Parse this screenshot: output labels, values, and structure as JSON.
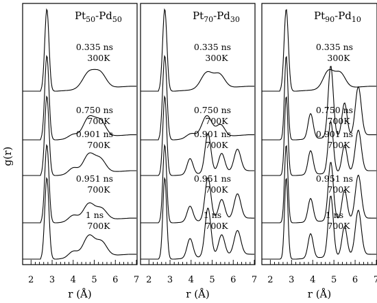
{
  "chart_data": {
    "type": "line",
    "ylabel": "g(r)",
    "xlabel": "r (Å)",
    "xlim": [
      1.6,
      7.0
    ],
    "x_ticks": [
      "2",
      "3",
      "4",
      "5",
      "6",
      "7"
    ],
    "y_ticks_labeled": false,
    "grid": false,
    "legend": "none",
    "panels": [
      {
        "title_main": "Pt",
        "title_sub1": "50",
        "title_mid": "-Pd",
        "title_sub2": "50",
        "curves": [
          {
            "time": "0.335 ns",
            "temp": "300K",
            "peaks": [
              [
                2.75,
                1.0,
                0.1
              ],
              [
                4.75,
                0.2,
                0.3
              ],
              [
                5.3,
                0.17,
                0.27
              ]
            ]
          },
          {
            "time": "0.750 ns",
            "temp": "700K",
            "peaks": [
              [
                2.75,
                1.0,
                0.1
              ],
              [
                4.0,
                0.05,
                0.22
              ],
              [
                4.75,
                0.24,
                0.27
              ],
              [
                5.3,
                0.18,
                0.25
              ]
            ]
          },
          {
            "time": "0.901 ns",
            "temp": "700K",
            "peaks": [
              [
                2.75,
                1.0,
                0.1
              ],
              [
                4.0,
                0.08,
                0.22
              ],
              [
                4.75,
                0.24,
                0.27
              ],
              [
                5.3,
                0.16,
                0.25
              ]
            ]
          },
          {
            "time": "0.951 ns",
            "temp": "700K",
            "peaks": [
              [
                2.75,
                1.0,
                0.1
              ],
              [
                4.0,
                0.08,
                0.22
              ],
              [
                4.75,
                0.22,
                0.27
              ],
              [
                5.35,
                0.14,
                0.25
              ]
            ]
          },
          {
            "time": "1 ns",
            "temp": "700K",
            "peaks": [
              [
                2.75,
                1.0,
                0.1
              ],
              [
                4.0,
                0.08,
                0.22
              ],
              [
                4.75,
                0.26,
                0.27
              ],
              [
                5.35,
                0.17,
                0.25
              ]
            ]
          }
        ]
      },
      {
        "title_main": "Pt",
        "title_sub1": "70",
        "title_mid": "-Pd",
        "title_sub2": "30",
        "curves": [
          {
            "time": "0.335 ns",
            "temp": "300K",
            "peaks": [
              [
                2.75,
                1.0,
                0.1
              ],
              [
                4.75,
                0.2,
                0.28
              ],
              [
                5.35,
                0.16,
                0.25
              ]
            ]
          },
          {
            "time": "0.750 ns",
            "temp": "700K",
            "peaks": [
              [
                2.75,
                1.0,
                0.1
              ],
              [
                4.0,
                0.06,
                0.22
              ],
              [
                4.75,
                0.26,
                0.24
              ],
              [
                5.4,
                0.14,
                0.2
              ]
            ]
          },
          {
            "time": "0.901 ns",
            "temp": "700K",
            "peaks": [
              [
                2.75,
                1.0,
                0.09
              ],
              [
                3.95,
                0.2,
                0.14
              ],
              [
                4.8,
                0.5,
                0.14
              ],
              [
                5.45,
                0.24,
                0.15
              ],
              [
                6.2,
                0.28,
                0.16
              ]
            ]
          },
          {
            "time": "0.951 ns",
            "temp": "700K",
            "peaks": [
              [
                2.75,
                1.0,
                0.09
              ],
              [
                3.95,
                0.2,
                0.14
              ],
              [
                4.8,
                0.55,
                0.14
              ],
              [
                5.45,
                0.26,
                0.15
              ],
              [
                6.2,
                0.32,
                0.16
              ]
            ]
          },
          {
            "time": "1 ns",
            "temp": "700K",
            "peaks": [
              [
                2.75,
                1.0,
                0.09
              ],
              [
                3.95,
                0.24,
                0.14
              ],
              [
                4.8,
                0.6,
                0.14
              ],
              [
                5.45,
                0.26,
                0.15
              ],
              [
                6.2,
                0.3,
                0.16
              ]
            ]
          }
        ]
      },
      {
        "title_main": "Pt",
        "title_sub1": "90",
        "title_mid": "-Pd",
        "title_sub2": "10",
        "curves": [
          {
            "time": "0.335 ns",
            "temp": "300K",
            "peaks": [
              [
                2.75,
                1.0,
                0.1
              ],
              [
                4.75,
                0.22,
                0.25
              ],
              [
                5.3,
                0.18,
                0.24
              ]
            ]
          },
          {
            "time": "0.750 ns",
            "temp": "700K",
            "peaks": [
              [
                2.75,
                1.0,
                0.08
              ],
              [
                3.9,
                0.3,
                0.12
              ],
              [
                4.85,
                0.85,
                0.12
              ],
              [
                5.5,
                0.4,
                0.12
              ],
              [
                6.15,
                0.58,
                0.14
              ]
            ]
          },
          {
            "time": "0.901 ns",
            "temp": "700K",
            "peaks": [
              [
                2.75,
                1.0,
                0.08
              ],
              [
                3.9,
                0.3,
                0.12
              ],
              [
                4.85,
                0.65,
                0.12
              ],
              [
                5.5,
                0.34,
                0.12
              ],
              [
                6.15,
                0.52,
                0.14
              ]
            ]
          },
          {
            "time": "0.951 ns",
            "temp": "700K",
            "peaks": [
              [
                2.75,
                1.0,
                0.08
              ],
              [
                3.9,
                0.3,
                0.12
              ],
              [
                4.85,
                0.75,
                0.12
              ],
              [
                5.5,
                0.38,
                0.12
              ],
              [
                6.15,
                0.56,
                0.14
              ]
            ]
          },
          {
            "time": "1 ns",
            "temp": "700K",
            "peaks": [
              [
                2.75,
                1.0,
                0.08
              ],
              [
                3.9,
                0.3,
                0.12
              ],
              [
                4.85,
                0.75,
                0.12
              ],
              [
                5.5,
                0.36,
                0.12
              ],
              [
                6.15,
                0.55,
                0.14
              ]
            ]
          }
        ]
      }
    ]
  }
}
